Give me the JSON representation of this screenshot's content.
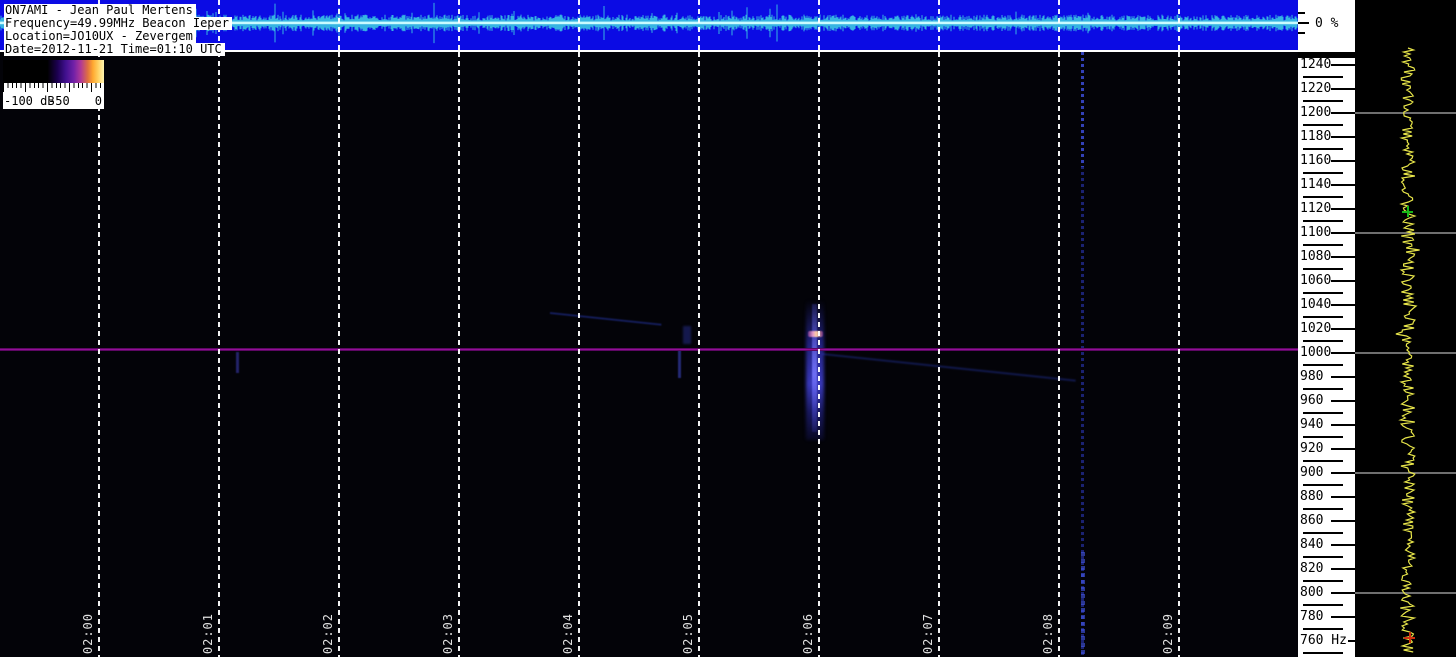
{
  "header": {
    "lines": [
      "ON7AMI - Jean Paul Mertens",
      "Frequency=49.99MHz Beacon Ieper",
      "Location=JO10UX - Zevergem",
      "Date=2012-11-21 Time=01:10 UTC"
    ]
  },
  "legend": {
    "labels": [
      "-100 dB",
      "-50",
      "0"
    ]
  },
  "amplitude_scale": {
    "label": "0 %"
  },
  "time_axis": {
    "labels": [
      "02:00",
      "02:01",
      "02:02",
      "02:03",
      "02:04",
      "02:05",
      "02:06",
      "02:07",
      "02:08",
      "02:09"
    ]
  },
  "frequency_axis": {
    "unit_label": "Hz",
    "major_labels": [
      "1240",
      "1220",
      "1200",
      "1180",
      "1160",
      "1140",
      "1120",
      "1100",
      "1080",
      "1060",
      "1040",
      "1020",
      "1000",
      "980",
      "960",
      "940",
      "920",
      "900",
      "880",
      "860",
      "840",
      "820",
      "800",
      "780",
      "760"
    ],
    "gridline_values_hz": [
      1200,
      1100,
      1000,
      900,
      800
    ]
  },
  "signals": {
    "carrier_line_hz": 1003,
    "features": [
      {
        "type": "meteor-ping",
        "time": "02:06",
        "freq_hz": 1005
      },
      {
        "type": "weak-ping",
        "time": "02:05",
        "freq_hz": 990
      },
      {
        "type": "weak-ping",
        "time": "02:01",
        "freq_hz": 995
      },
      {
        "type": "doppler-trace",
        "time": "02:04-02:05",
        "freq_hz": 1030
      },
      {
        "type": "doppler-trace",
        "time": "02:06-02:08",
        "freq_hz": 990
      },
      {
        "type": "interference-streak",
        "time": "02:08",
        "freq_range": "full-band"
      }
    ],
    "markers": [
      {
        "name": "peak-marker-green",
        "freq_hz": 1118,
        "color": "#18b818"
      },
      {
        "name": "peak-marker-red",
        "freq_hz": 763,
        "color": "#d03010"
      }
    ]
  },
  "colors": {
    "strip_background": "#0b0be4",
    "waveform": "#35b4e2",
    "waveform_center": "#c8fbff",
    "carrier_line": "#a312a8",
    "spectrum_trace": "#e8e64a",
    "grid_dash": "#ffffff"
  }
}
